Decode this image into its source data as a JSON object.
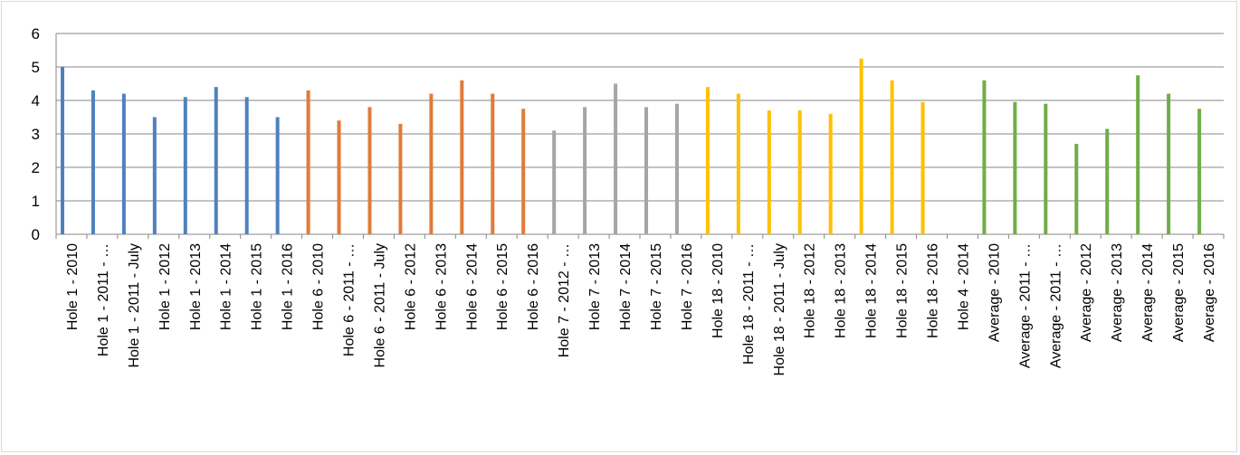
{
  "chart_data": {
    "type": "bar",
    "title": "",
    "xlabel": "",
    "ylabel": "",
    "ylim": [
      0,
      6
    ],
    "y_ticks": [
      "0",
      "1",
      "2",
      "3",
      "4",
      "5",
      "6"
    ],
    "grid": true,
    "legend": "none",
    "categories": [
      "Hole 1 - 2010",
      "Hole 1 - 2011 - …",
      "Hole 1 - 2011 - July",
      "Hole 1 - 2012",
      "Hole 1 - 2013",
      "Hole 1 - 2014",
      "Hole 1 - 2015",
      "Hole 1 - 2016",
      "Hole 6 - 2010",
      "Hole 6 - 2011 - …",
      "Hole 6 - 2011 - July",
      "Hole 6 - 2012",
      "Hole 6 - 2013",
      "Hole 6 - 2014",
      "Hole 6 - 2015",
      "Hole 6 - 2016",
      "Hole 7 - 2012 - …",
      "Hole 7 - 2013",
      "Hole 7 - 2014",
      "Hole 7 - 2015",
      "Hole 7 - 2016",
      "Hole 18 - 2010",
      "Hole 18 - 2011 - …",
      "Hole 18 - 2011 - July",
      "Hole 18 - 2012",
      "Hole 18 - 2013",
      "Hole 18 - 2014",
      "Hole 18 - 2015",
      "Hole 18 - 2016",
      "Hole 4 - 2014",
      "Average - 2010",
      "Average - 2011 - …",
      "Average - 2011 - …",
      "Average - 2012",
      "Average - 2013",
      "Average - 2014",
      "Average - 2015",
      "Average - 2016"
    ],
    "values": [
      5.0,
      4.3,
      4.2,
      3.5,
      4.1,
      4.4,
      4.1,
      3.5,
      4.3,
      3.4,
      3.8,
      3.3,
      4.2,
      4.6,
      4.2,
      3.75,
      3.1,
      3.8,
      4.5,
      3.8,
      3.9,
      4.4,
      4.2,
      3.7,
      3.7,
      3.6,
      5.25,
      4.6,
      3.95,
      0,
      4.6,
      3.95,
      3.9,
      2.7,
      3.15,
      4.75,
      4.2,
      3.75
    ],
    "colors": [
      "#4f81bd",
      "#4f81bd",
      "#4f81bd",
      "#4f81bd",
      "#4f81bd",
      "#4f81bd",
      "#4f81bd",
      "#4f81bd",
      "#e07b39",
      "#e07b39",
      "#e07b39",
      "#e07b39",
      "#e07b39",
      "#e07b39",
      "#e07b39",
      "#e07b39",
      "#a5a5a5",
      "#a5a5a5",
      "#a5a5a5",
      "#a5a5a5",
      "#a5a5a5",
      "#ffc000",
      "#ffc000",
      "#ffc000",
      "#ffc000",
      "#ffc000",
      "#ffc000",
      "#ffc000",
      "#ffc000",
      "#4472c4",
      "#70ad47",
      "#70ad47",
      "#70ad47",
      "#70ad47",
      "#70ad47",
      "#70ad47",
      "#70ad47",
      "#70ad47"
    ]
  }
}
